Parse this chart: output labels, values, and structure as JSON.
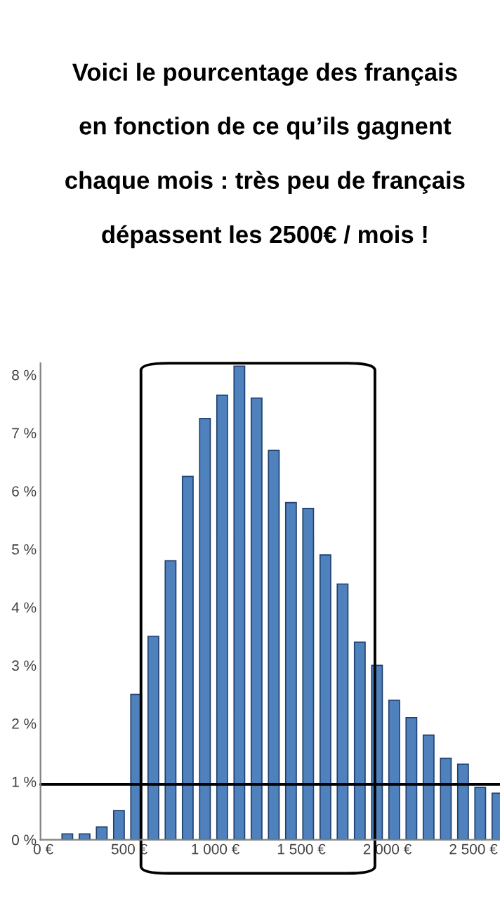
{
  "chart_data": {
    "type": "bar",
    "title": "Voici le pourcentage des français\nen fonction de ce qu’ils gagnent\nchaque mois : très peu de français\ndépassent les 2500€ / mois !",
    "x": [
      140,
      240,
      340,
      440,
      540,
      640,
      740,
      840,
      940,
      1040,
      1140,
      1240,
      1340,
      1440,
      1540,
      1640,
      1740,
      1840,
      1940,
      2040,
      2140,
      2240,
      2340,
      2440,
      2540,
      2640
    ],
    "values": [
      0.1,
      0.1,
      0.22,
      0.5,
      2.5,
      3.5,
      4.8,
      6.25,
      7.25,
      7.65,
      8.15,
      7.6,
      6.7,
      5.8,
      5.7,
      4.9,
      4.4,
      3.4,
      3.0,
      2.4,
      2.1,
      1.8,
      1.4,
      1.3,
      0.9,
      0.8
    ],
    "color": "#4f81bd",
    "xlim": [
      -16,
      2655
    ],
    "xticks": [
      {
        "value": 0,
        "label": "0 €"
      },
      {
        "value": 500,
        "label": "500 €"
      },
      {
        "value": 1000,
        "label": "1 000 €"
      },
      {
        "value": 1500,
        "label": "1 500 €"
      },
      {
        "value": 2000,
        "label": "2 000 €"
      },
      {
        "value": 2500,
        "label": "2 500 €"
      }
    ],
    "ylim": [
      0,
      8.2
    ],
    "yticks": [
      {
        "value": 0,
        "label": "0 %"
      },
      {
        "value": 1,
        "label": "1 %"
      },
      {
        "value": 2,
        "label": "2 %"
      },
      {
        "value": 3,
        "label": "3 %"
      },
      {
        "value": 4,
        "label": "4 %"
      },
      {
        "value": 5,
        "label": "5 %"
      },
      {
        "value": 6,
        "label": "6 %"
      },
      {
        "value": 7,
        "label": "7 %"
      },
      {
        "value": 8,
        "label": "8 %"
      }
    ],
    "ref_lines": [
      {
        "axis": "y",
        "value": 0.95,
        "color": "#000000"
      }
    ],
    "grid": false,
    "legend": false
  }
}
